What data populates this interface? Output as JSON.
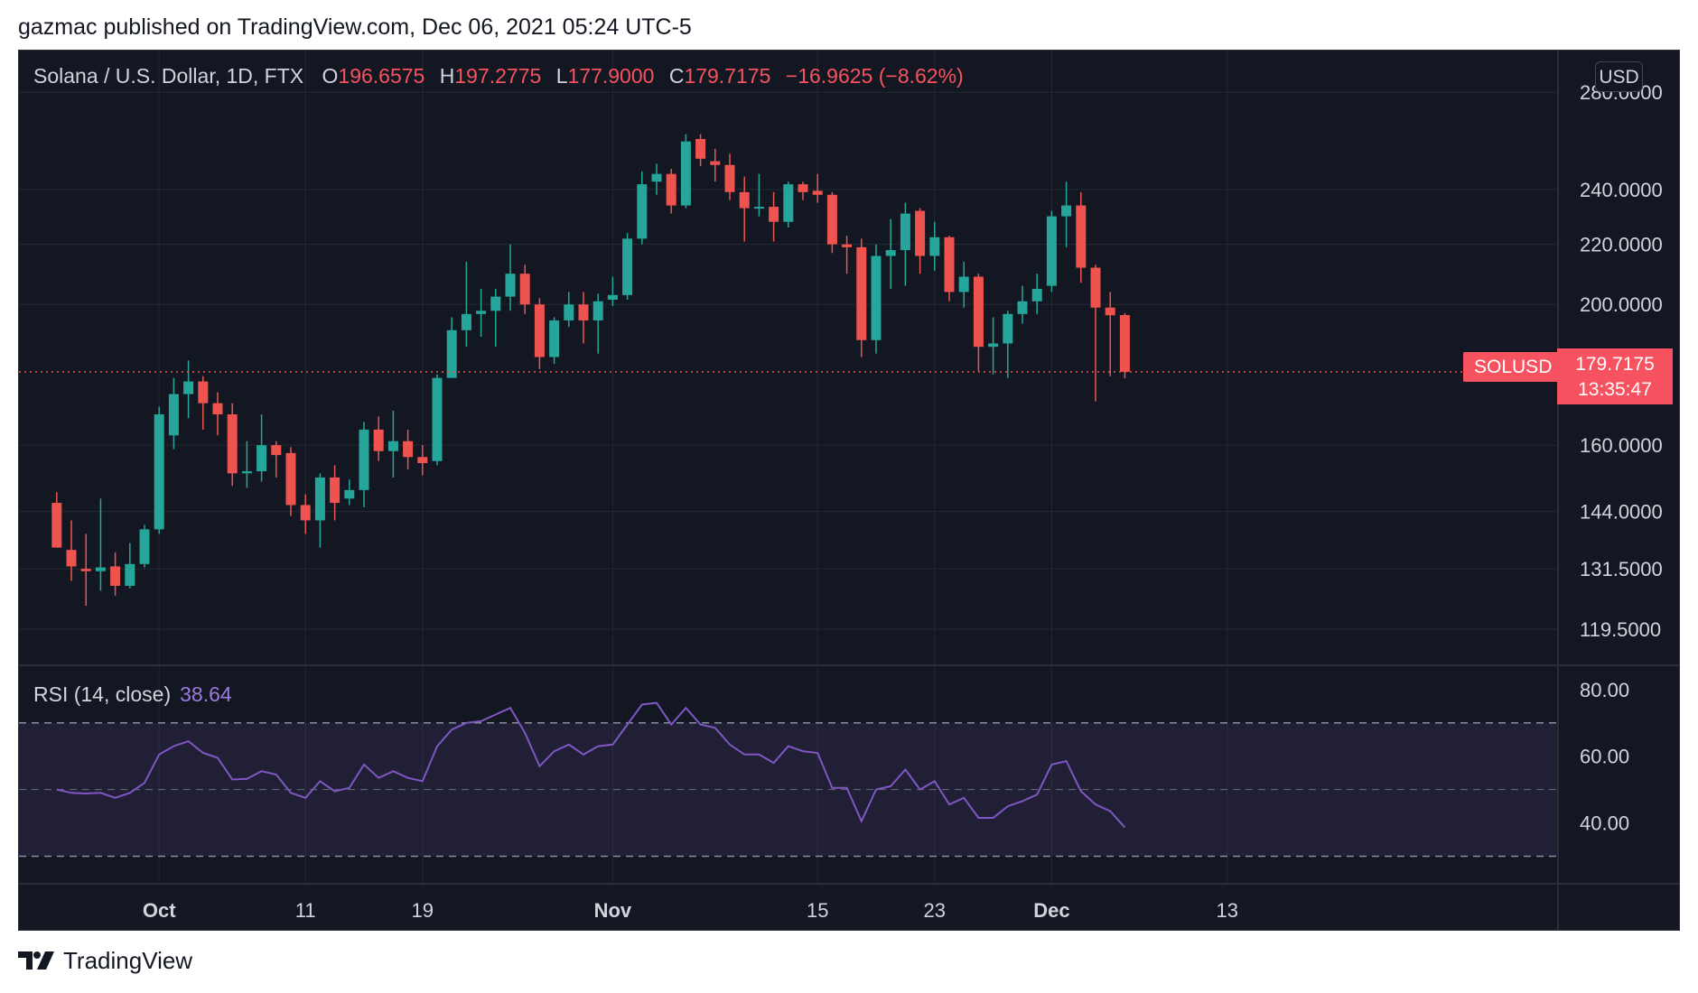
{
  "header": {
    "publisher_line": "gazmac published on TradingView.com, Dec 06, 2021 05:24 UTC-5",
    "symbol_title": "Solana / U.S. Dollar, 1D, FTX",
    "ohlc": {
      "o_label": "O",
      "o": "196.6575",
      "h_label": "H",
      "h": "197.2775",
      "l_label": "L",
      "l": "177.9000",
      "c_label": "C",
      "c": "179.7175",
      "change": "−16.9625 (−8.62%)"
    }
  },
  "price_axis": {
    "currency_button": "USD",
    "symbol_tag": "SOLUSD",
    "last_price": "179.7175",
    "countdown": "13:35:47",
    "ticks": [
      "280.0000",
      "240.0000",
      "220.0000",
      "200.0000",
      "160.0000",
      "144.0000",
      "131.5000",
      "119.5000"
    ]
  },
  "rsi": {
    "title": "RSI (14, close)",
    "value": "38.64",
    "ticks": [
      "80.00",
      "60.00",
      "40.00"
    ]
  },
  "time_axis": {
    "labels": [
      {
        "label": "Oct",
        "day": 1,
        "bold": true
      },
      {
        "label": "11",
        "day": 11,
        "bold": false
      },
      {
        "label": "19",
        "day": 19,
        "bold": false
      },
      {
        "label": "Nov",
        "day": 32,
        "bold": true
      },
      {
        "label": "15",
        "day": 46,
        "bold": false
      },
      {
        "label": "23",
        "day": 54,
        "bold": false
      },
      {
        "label": "Dec",
        "day": 62,
        "bold": true
      },
      {
        "label": "13",
        "day": 74,
        "bold": false
      }
    ]
  },
  "footer": {
    "brand": "TradingView"
  },
  "colors": {
    "up": "#26a69a",
    "down": "#ef5350",
    "rsi_line": "#7e57c2",
    "price_line": "#ef5350",
    "background": "#131722"
  },
  "chart_data": {
    "type": "candlestick",
    "price_scale": "log",
    "ylim": [
      113,
      287
    ],
    "rsi_ylim": [
      22,
      87
    ],
    "rsi_band": [
      30,
      70
    ],
    "candles": [
      {
        "d": -6,
        "o": 146.0,
        "h": 148.5,
        "l": 136.0,
        "c": 136.0
      },
      {
        "d": -5,
        "o": 135.5,
        "h": 142.0,
        "l": 129.0,
        "c": 132.0
      },
      {
        "d": -4,
        "o": 131.5,
        "h": 139.0,
        "l": 124.0,
        "c": 131.0
      },
      {
        "d": -3,
        "o": 131.0,
        "h": 147.0,
        "l": 127.0,
        "c": 131.8
      },
      {
        "d": -2,
        "o": 132.0,
        "h": 135.0,
        "l": 126.0,
        "c": 128.0
      },
      {
        "d": -1,
        "o": 128.0,
        "h": 137.0,
        "l": 127.5,
        "c": 132.5
      },
      {
        "d": 0,
        "o": 132.5,
        "h": 141.0,
        "l": 131.8,
        "c": 140.0
      },
      {
        "d": 1,
        "o": 140.0,
        "h": 170.0,
        "l": 139.0,
        "c": 168.0
      },
      {
        "d": 2,
        "o": 162.5,
        "h": 178.0,
        "l": 159.0,
        "c": 173.5
      },
      {
        "d": 3,
        "o": 173.5,
        "h": 183.0,
        "l": 167.0,
        "c": 177.0
      },
      {
        "d": 4,
        "o": 177.0,
        "h": 178.5,
        "l": 164.0,
        "c": 171.0
      },
      {
        "d": 5,
        "o": 171.0,
        "h": 174.0,
        "l": 162.5,
        "c": 168.0
      },
      {
        "d": 6,
        "o": 168.0,
        "h": 171.0,
        "l": 150.0,
        "c": 153.0
      },
      {
        "d": 7,
        "o": 153.0,
        "h": 161.0,
        "l": 149.5,
        "c": 153.5
      },
      {
        "d": 8,
        "o": 153.5,
        "h": 168.0,
        "l": 151.0,
        "c": 160.0
      },
      {
        "d": 9,
        "o": 160.0,
        "h": 161.0,
        "l": 152.0,
        "c": 157.5
      },
      {
        "d": 10,
        "o": 158.0,
        "h": 159.5,
        "l": 143.0,
        "c": 145.5
      },
      {
        "d": 11,
        "o": 145.5,
        "h": 148.0,
        "l": 139.0,
        "c": 142.0
      },
      {
        "d": 12,
        "o": 142.0,
        "h": 153.0,
        "l": 136.0,
        "c": 152.0
      },
      {
        "d": 13,
        "o": 152.0,
        "h": 155.0,
        "l": 142.0,
        "c": 146.0
      },
      {
        "d": 14,
        "o": 147.0,
        "h": 151.5,
        "l": 145.5,
        "c": 149.0
      },
      {
        "d": 15,
        "o": 149.0,
        "h": 166.0,
        "l": 145.0,
        "c": 164.0
      },
      {
        "d": 16,
        "o": 164.0,
        "h": 167.5,
        "l": 156.0,
        "c": 158.5
      },
      {
        "d": 17,
        "o": 158.5,
        "h": 169.0,
        "l": 152.0,
        "c": 161.0
      },
      {
        "d": 18,
        "o": 161.0,
        "h": 164.0,
        "l": 154.0,
        "c": 157.0
      },
      {
        "d": 19,
        "o": 157.0,
        "h": 160.0,
        "l": 152.5,
        "c": 155.5
      },
      {
        "d": 20,
        "o": 156.0,
        "h": 179.0,
        "l": 155.0,
        "c": 178.0
      },
      {
        "d": 21,
        "o": 178.0,
        "h": 196.0,
        "l": 178.0,
        "c": 192.0
      },
      {
        "d": 22,
        "o": 192.0,
        "h": 214.0,
        "l": 187.0,
        "c": 197.0
      },
      {
        "d": 23,
        "o": 197.0,
        "h": 205.0,
        "l": 190.0,
        "c": 198.0
      },
      {
        "d": 24,
        "o": 198.0,
        "h": 205.0,
        "l": 187.0,
        "c": 202.5
      },
      {
        "d": 25,
        "o": 202.5,
        "h": 220.0,
        "l": 198.0,
        "c": 210.0
      },
      {
        "d": 26,
        "o": 210.0,
        "h": 213.0,
        "l": 197.0,
        "c": 200.0
      },
      {
        "d": 27,
        "o": 200.0,
        "h": 202.0,
        "l": 180.5,
        "c": 184.0
      },
      {
        "d": 28,
        "o": 184.0,
        "h": 196.0,
        "l": 182.0,
        "c": 195.0
      },
      {
        "d": 29,
        "o": 195.0,
        "h": 204.0,
        "l": 193.0,
        "c": 200.0
      },
      {
        "d": 30,
        "o": 200.0,
        "h": 204.0,
        "l": 188.0,
        "c": 195.0
      },
      {
        "d": 31,
        "o": 195.0,
        "h": 203.5,
        "l": 185.0,
        "c": 201.0
      },
      {
        "d": 32,
        "o": 201.5,
        "h": 209.0,
        "l": 199.5,
        "c": 203.0
      },
      {
        "d": 33,
        "o": 203.0,
        "h": 224.0,
        "l": 201.5,
        "c": 222.0
      },
      {
        "d": 34,
        "o": 222.0,
        "h": 247.0,
        "l": 220.0,
        "c": 242.0
      },
      {
        "d": 35,
        "o": 243.0,
        "h": 250.0,
        "l": 238.0,
        "c": 246.0
      },
      {
        "d": 36,
        "o": 246.0,
        "h": 248.0,
        "l": 231.0,
        "c": 234.0
      },
      {
        "d": 37,
        "o": 234.0,
        "h": 262.0,
        "l": 233.0,
        "c": 259.0
      },
      {
        "d": 38,
        "o": 260.0,
        "h": 262.0,
        "l": 249.0,
        "c": 252.0
      },
      {
        "d": 39,
        "o": 251.0,
        "h": 256.0,
        "l": 243.0,
        "c": 249.5
      },
      {
        "d": 40,
        "o": 249.5,
        "h": 254.0,
        "l": 236.0,
        "c": 239.0
      },
      {
        "d": 41,
        "o": 239.0,
        "h": 245.0,
        "l": 221.0,
        "c": 233.0
      },
      {
        "d": 42,
        "o": 233.0,
        "h": 246.0,
        "l": 230.0,
        "c": 233.5
      },
      {
        "d": 43,
        "o": 233.5,
        "h": 239.0,
        "l": 221.0,
        "c": 228.0
      },
      {
        "d": 44,
        "o": 228.0,
        "h": 243.0,
        "l": 226.0,
        "c": 242.0
      },
      {
        "d": 45,
        "o": 242.0,
        "h": 243.0,
        "l": 236.0,
        "c": 239.0
      },
      {
        "d": 46,
        "o": 239.5,
        "h": 246.0,
        "l": 235.0,
        "c": 238.0
      },
      {
        "d": 47,
        "o": 238.0,
        "h": 239.0,
        "l": 217.0,
        "c": 220.0
      },
      {
        "d": 48,
        "o": 220.0,
        "h": 223.0,
        "l": 210.0,
        "c": 219.0
      },
      {
        "d": 49,
        "o": 219.0,
        "h": 222.0,
        "l": 184.0,
        "c": 189.0
      },
      {
        "d": 50,
        "o": 189.0,
        "h": 220.0,
        "l": 185.0,
        "c": 216.0
      },
      {
        "d": 51,
        "o": 216.0,
        "h": 229.0,
        "l": 205.0,
        "c": 218.0
      },
      {
        "d": 52,
        "o": 218.0,
        "h": 235.0,
        "l": 206.0,
        "c": 231.0
      },
      {
        "d": 53,
        "o": 232.0,
        "h": 233.0,
        "l": 210.0,
        "c": 216.0
      },
      {
        "d": 54,
        "o": 216.0,
        "h": 228.0,
        "l": 211.0,
        "c": 222.5
      },
      {
        "d": 55,
        "o": 222.5,
        "h": 223.0,
        "l": 201.0,
        "c": 204.0
      },
      {
        "d": 56,
        "o": 204.0,
        "h": 214.0,
        "l": 199.0,
        "c": 209.0
      },
      {
        "d": 57,
        "o": 209.0,
        "h": 210.0,
        "l": 180.0,
        "c": 187.0
      },
      {
        "d": 58,
        "o": 187.0,
        "h": 196.0,
        "l": 179.0,
        "c": 188.0
      },
      {
        "d": 59,
        "o": 188.0,
        "h": 198.0,
        "l": 178.0,
        "c": 197.0
      },
      {
        "d": 60,
        "o": 197.0,
        "h": 206.0,
        "l": 194.0,
        "c": 201.0
      },
      {
        "d": 61,
        "o": 201.0,
        "h": 210.0,
        "l": 197.0,
        "c": 205.0
      },
      {
        "d": 62,
        "o": 206.0,
        "h": 232.0,
        "l": 204.0,
        "c": 230.0
      },
      {
        "d": 63,
        "o": 230.0,
        "h": 243.0,
        "l": 219.0,
        "c": 234.0
      },
      {
        "d": 64,
        "o": 234.0,
        "h": 239.0,
        "l": 207.0,
        "c": 212.0
      },
      {
        "d": 65,
        "o": 212.0,
        "h": 213.0,
        "l": 171.5,
        "c": 199.0
      },
      {
        "d": 66,
        "o": 199.0,
        "h": 204.0,
        "l": 178.5,
        "c": 196.6
      },
      {
        "d": 67,
        "o": 196.6575,
        "h": 197.2775,
        "l": 177.9,
        "c": 179.7175
      }
    ],
    "rsi_values": [
      {
        "d": -6,
        "v": 50.0
      },
      {
        "d": -5,
        "v": 49.0
      },
      {
        "d": -4,
        "v": 48.8
      },
      {
        "d": -3,
        "v": 49.0
      },
      {
        "d": -2,
        "v": 47.5
      },
      {
        "d": -1,
        "v": 49.0
      },
      {
        "d": 0,
        "v": 52.0
      },
      {
        "d": 1,
        "v": 60.5
      },
      {
        "d": 2,
        "v": 63.0
      },
      {
        "d": 3,
        "v": 64.5
      },
      {
        "d": 4,
        "v": 61.0
      },
      {
        "d": 5,
        "v": 59.5
      },
      {
        "d": 6,
        "v": 53.0
      },
      {
        "d": 7,
        "v": 53.2
      },
      {
        "d": 8,
        "v": 55.5
      },
      {
        "d": 9,
        "v": 54.5
      },
      {
        "d": 10,
        "v": 49.0
      },
      {
        "d": 11,
        "v": 47.5
      },
      {
        "d": 12,
        "v": 52.5
      },
      {
        "d": 13,
        "v": 49.5
      },
      {
        "d": 14,
        "v": 50.5
      },
      {
        "d": 15,
        "v": 57.5
      },
      {
        "d": 16,
        "v": 53.5
      },
      {
        "d": 17,
        "v": 55.5
      },
      {
        "d": 18,
        "v": 53.5
      },
      {
        "d": 19,
        "v": 52.5
      },
      {
        "d": 20,
        "v": 63.0
      },
      {
        "d": 21,
        "v": 68.0
      },
      {
        "d": 22,
        "v": 70.0
      },
      {
        "d": 23,
        "v": 70.5
      },
      {
        "d": 24,
        "v": 72.5
      },
      {
        "d": 25,
        "v": 74.5
      },
      {
        "d": 26,
        "v": 67.0
      },
      {
        "d": 27,
        "v": 57.0
      },
      {
        "d": 28,
        "v": 61.5
      },
      {
        "d": 29,
        "v": 63.5
      },
      {
        "d": 30,
        "v": 60.5
      },
      {
        "d": 31,
        "v": 63.0
      },
      {
        "d": 32,
        "v": 63.5
      },
      {
        "d": 33,
        "v": 69.5
      },
      {
        "d": 34,
        "v": 75.5
      },
      {
        "d": 35,
        "v": 76.0
      },
      {
        "d": 36,
        "v": 69.5
      },
      {
        "d": 37,
        "v": 74.5
      },
      {
        "d": 38,
        "v": 69.5
      },
      {
        "d": 39,
        "v": 68.5
      },
      {
        "d": 40,
        "v": 63.5
      },
      {
        "d": 41,
        "v": 60.5
      },
      {
        "d": 42,
        "v": 60.5
      },
      {
        "d": 43,
        "v": 58.0
      },
      {
        "d": 44,
        "v": 63.0
      },
      {
        "d": 45,
        "v": 61.5
      },
      {
        "d": 46,
        "v": 61.0
      },
      {
        "d": 47,
        "v": 50.5
      },
      {
        "d": 48,
        "v": 50.5
      },
      {
        "d": 49,
        "v": 40.5
      },
      {
        "d": 50,
        "v": 50.0
      },
      {
        "d": 51,
        "v": 51.0
      },
      {
        "d": 52,
        "v": 56.0
      },
      {
        "d": 53,
        "v": 50.0
      },
      {
        "d": 54,
        "v": 52.5
      },
      {
        "d": 55,
        "v": 45.5
      },
      {
        "d": 56,
        "v": 47.5
      },
      {
        "d": 57,
        "v": 41.5
      },
      {
        "d": 58,
        "v": 41.5
      },
      {
        "d": 59,
        "v": 45.0
      },
      {
        "d": 60,
        "v": 46.5
      },
      {
        "d": 61,
        "v": 48.5
      },
      {
        "d": 62,
        "v": 57.5
      },
      {
        "d": 63,
        "v": 58.5
      },
      {
        "d": 64,
        "v": 49.5
      },
      {
        "d": 65,
        "v": 45.5
      },
      {
        "d": 66,
        "v": 43.5
      },
      {
        "d": 67,
        "v": 38.64
      }
    ]
  }
}
